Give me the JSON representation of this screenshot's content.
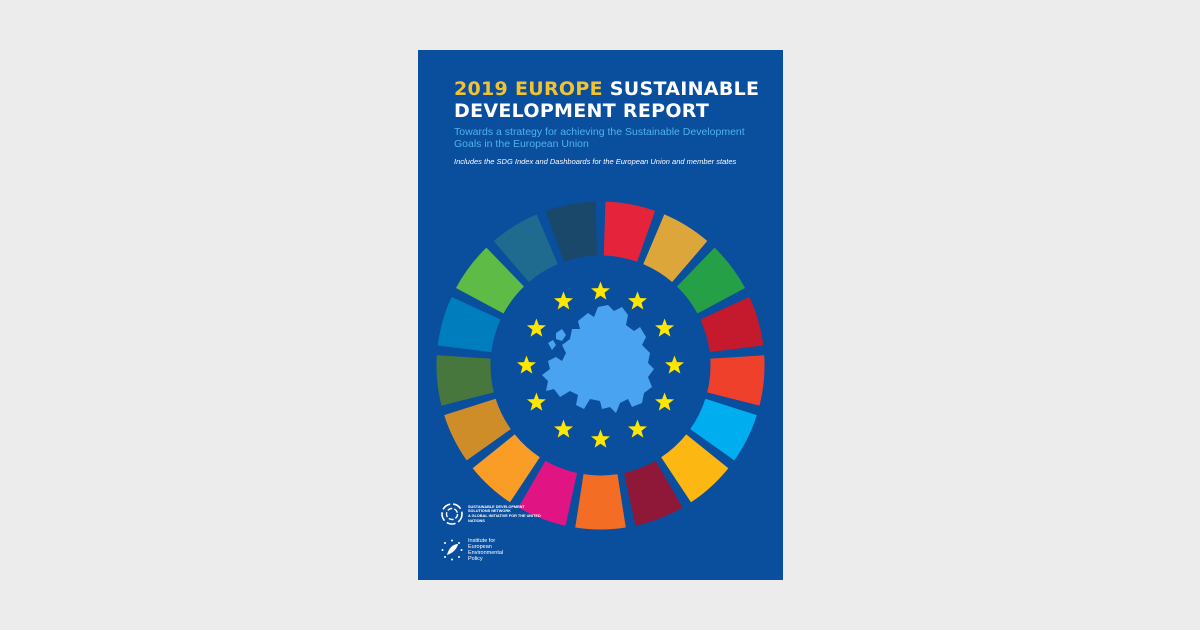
{
  "cover": {
    "title_highlight": "2019 EUROPE",
    "title_rest_1": " SUSTAINABLE",
    "title_line_2": "DEVELOPMENT REPORT",
    "subtitle": "Towards a strategy for achieving the Sustainable Development Goals in the European Union",
    "note": "Includes the SDG Index and Dashboards for the European Union and member states"
  },
  "colors": {
    "background": "#0a4e9e",
    "page": "#ececec",
    "title_highlight": "#f2c230",
    "subtitle": "#4fb3ea",
    "stars": "#ffe600",
    "map": "#4aa3f0",
    "sdg_wheel": [
      "#e5243b",
      "#dda63a",
      "#26a046",
      "#c5192d",
      "#ef402c",
      "#00adef",
      "#fdb713",
      "#8f1838",
      "#f36d25",
      "#e11484",
      "#f99d26",
      "#cf8d2a",
      "#48773e",
      "#007dbc",
      "#5dbb46",
      "#1f6b8f",
      "#19486a"
    ]
  },
  "logos": {
    "sdsn": {
      "icon": "sdsn-circle-logo-icon",
      "lines": [
        "SUSTAINABLE DEVELOPMENT",
        "SOLUTIONS NETWORK",
        "A GLOBAL INITIATIVE FOR THE UNITED NATIONS"
      ]
    },
    "ieep": {
      "icon": "ieep-leaf-stars-logo-icon",
      "lines": [
        "Institute for",
        "European",
        "Environmental",
        "Policy"
      ]
    }
  }
}
